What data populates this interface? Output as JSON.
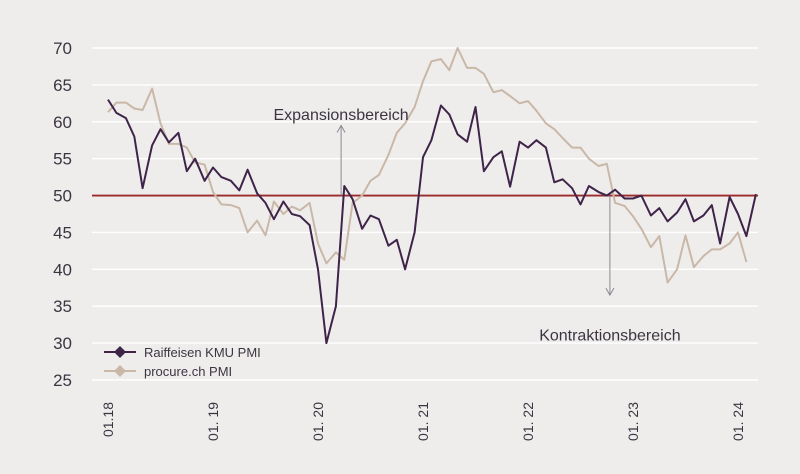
{
  "chart_data": {
    "type": "line",
    "ylim": [
      25,
      70
    ],
    "yticks": [
      25,
      30,
      35,
      40,
      45,
      50,
      55,
      60,
      65,
      70
    ],
    "x_range": [
      2018.0,
      2024.25
    ],
    "xtick_labels": [
      "01.18",
      "01. 19",
      "01. 20",
      "01. 21",
      "01. 22",
      "01. 23",
      "01. 24"
    ],
    "xtick_values": [
      2018.0,
      2019.0,
      2020.0,
      2021.0,
      2022.0,
      2023.0,
      2024.0
    ],
    "reference_line": {
      "y": 50,
      "color": "#9b2a2a"
    },
    "annotations": [
      {
        "text": "Expansionsbereich",
        "x": 2020.22,
        "y": 58.6,
        "arrow_from": 50,
        "arrow_to": 59.5
      },
      {
        "text": "Kontraktionsbereich",
        "x": 2022.78,
        "y": 32.5,
        "arrow_from": 50,
        "arrow_to": 36.5
      }
    ],
    "legend": {
      "placement": "bottom-left"
    },
    "series": [
      {
        "name": "Raiffeisen KMU PMI",
        "color": "#3e2448",
        "values": [
          [
            2018.0,
            63.0
          ],
          [
            2018.08,
            61.2
          ],
          [
            2018.17,
            60.5
          ],
          [
            2018.25,
            58.0
          ],
          [
            2018.33,
            51.0
          ],
          [
            2018.42,
            56.8
          ],
          [
            2018.5,
            59.0
          ],
          [
            2018.58,
            57.2
          ],
          [
            2018.67,
            58.5
          ],
          [
            2018.75,
            53.3
          ],
          [
            2018.83,
            55.0
          ],
          [
            2018.92,
            52.0
          ],
          [
            2019.0,
            53.8
          ],
          [
            2019.08,
            52.5
          ],
          [
            2019.17,
            52.0
          ],
          [
            2019.25,
            50.7
          ],
          [
            2019.33,
            53.5
          ],
          [
            2019.42,
            50.3
          ],
          [
            2019.5,
            49.0
          ],
          [
            2019.58,
            46.8
          ],
          [
            2019.67,
            49.2
          ],
          [
            2019.75,
            47.5
          ],
          [
            2019.83,
            47.2
          ],
          [
            2019.92,
            46.0
          ],
          [
            2020.0,
            40.0
          ],
          [
            2020.08,
            30.0
          ],
          [
            2020.17,
            35.0
          ],
          [
            2020.25,
            51.3
          ],
          [
            2020.33,
            49.5
          ],
          [
            2020.42,
            45.5
          ],
          [
            2020.5,
            47.3
          ],
          [
            2020.58,
            46.8
          ],
          [
            2020.67,
            43.2
          ],
          [
            2020.75,
            44.0
          ],
          [
            2020.83,
            40.0
          ],
          [
            2020.92,
            45.0
          ],
          [
            2021.0,
            55.2
          ],
          [
            2021.08,
            57.5
          ],
          [
            2021.17,
            62.2
          ],
          [
            2021.25,
            61.0
          ],
          [
            2021.33,
            58.3
          ],
          [
            2021.42,
            57.3
          ],
          [
            2021.5,
            62.0
          ],
          [
            2021.58,
            53.3
          ],
          [
            2021.67,
            55.2
          ],
          [
            2021.75,
            56.0
          ],
          [
            2021.83,
            51.2
          ],
          [
            2021.92,
            57.3
          ],
          [
            2022.0,
            56.5
          ],
          [
            2022.08,
            57.5
          ],
          [
            2022.17,
            56.5
          ],
          [
            2022.25,
            51.8
          ],
          [
            2022.33,
            52.2
          ],
          [
            2022.42,
            51.0
          ],
          [
            2022.5,
            48.8
          ],
          [
            2022.58,
            51.3
          ],
          [
            2022.67,
            50.5
          ],
          [
            2022.75,
            50.0
          ],
          [
            2022.83,
            50.8
          ],
          [
            2022.92,
            49.6
          ],
          [
            2023.0,
            49.6
          ],
          [
            2023.08,
            50.0
          ],
          [
            2023.17,
            47.3
          ],
          [
            2023.25,
            48.3
          ],
          [
            2023.33,
            46.5
          ],
          [
            2023.42,
            47.7
          ],
          [
            2023.5,
            49.5
          ],
          [
            2023.58,
            46.5
          ],
          [
            2023.67,
            47.3
          ],
          [
            2023.75,
            48.7
          ],
          [
            2023.83,
            43.5
          ],
          [
            2023.92,
            49.8
          ],
          [
            2024.0,
            47.5
          ],
          [
            2024.08,
            44.5
          ],
          [
            2024.17,
            50.2
          ]
        ]
      },
      {
        "name": "procure.ch PMI",
        "color": "#c9b8a7",
        "values": [
          [
            2018.0,
            61.3
          ],
          [
            2018.08,
            62.6
          ],
          [
            2018.17,
            62.6
          ],
          [
            2018.25,
            61.8
          ],
          [
            2018.33,
            61.6
          ],
          [
            2018.42,
            64.5
          ],
          [
            2018.5,
            59.8
          ],
          [
            2018.58,
            57.0
          ],
          [
            2018.67,
            57.0
          ],
          [
            2018.75,
            56.5
          ],
          [
            2018.83,
            54.5
          ],
          [
            2018.92,
            54.2
          ],
          [
            2019.0,
            50.5
          ],
          [
            2019.08,
            48.8
          ],
          [
            2019.17,
            48.7
          ],
          [
            2019.25,
            48.3
          ],
          [
            2019.33,
            45.0
          ],
          [
            2019.42,
            46.6
          ],
          [
            2019.5,
            44.6
          ],
          [
            2019.58,
            49.2
          ],
          [
            2019.67,
            47.5
          ],
          [
            2019.75,
            48.5
          ],
          [
            2019.83,
            48.0
          ],
          [
            2019.92,
            49.0
          ],
          [
            2020.0,
            43.5
          ],
          [
            2020.08,
            40.8
          ],
          [
            2020.17,
            42.3
          ],
          [
            2020.25,
            41.3
          ],
          [
            2020.33,
            49.0
          ],
          [
            2020.42,
            50.0
          ],
          [
            2020.5,
            52.0
          ],
          [
            2020.58,
            52.8
          ],
          [
            2020.67,
            55.5
          ],
          [
            2020.75,
            58.5
          ],
          [
            2020.83,
            59.8
          ],
          [
            2020.92,
            62.0
          ],
          [
            2021.0,
            65.5
          ],
          [
            2021.08,
            68.2
          ],
          [
            2021.17,
            68.5
          ],
          [
            2021.25,
            67.0
          ],
          [
            2021.33,
            70.0
          ],
          [
            2021.42,
            67.3
          ],
          [
            2021.5,
            67.3
          ],
          [
            2021.58,
            66.5
          ],
          [
            2021.67,
            64.0
          ],
          [
            2021.75,
            64.3
          ],
          [
            2021.83,
            63.5
          ],
          [
            2021.92,
            62.5
          ],
          [
            2022.0,
            62.8
          ],
          [
            2022.08,
            61.5
          ],
          [
            2022.17,
            59.8
          ],
          [
            2022.25,
            59.0
          ],
          [
            2022.33,
            57.8
          ],
          [
            2022.42,
            56.5
          ],
          [
            2022.5,
            56.5
          ],
          [
            2022.58,
            55.0
          ],
          [
            2022.67,
            54.0
          ],
          [
            2022.75,
            54.3
          ],
          [
            2022.83,
            49.0
          ],
          [
            2022.92,
            48.6
          ],
          [
            2023.0,
            47.2
          ],
          [
            2023.08,
            45.5
          ],
          [
            2023.17,
            43.0
          ],
          [
            2023.25,
            44.5
          ],
          [
            2023.33,
            38.2
          ],
          [
            2023.42,
            40.0
          ],
          [
            2023.5,
            44.6
          ],
          [
            2023.58,
            40.3
          ],
          [
            2023.67,
            41.8
          ],
          [
            2023.75,
            42.7
          ],
          [
            2023.83,
            42.7
          ],
          [
            2023.92,
            43.5
          ],
          [
            2024.0,
            45.0
          ],
          [
            2024.08,
            41.0
          ]
        ]
      }
    ]
  }
}
